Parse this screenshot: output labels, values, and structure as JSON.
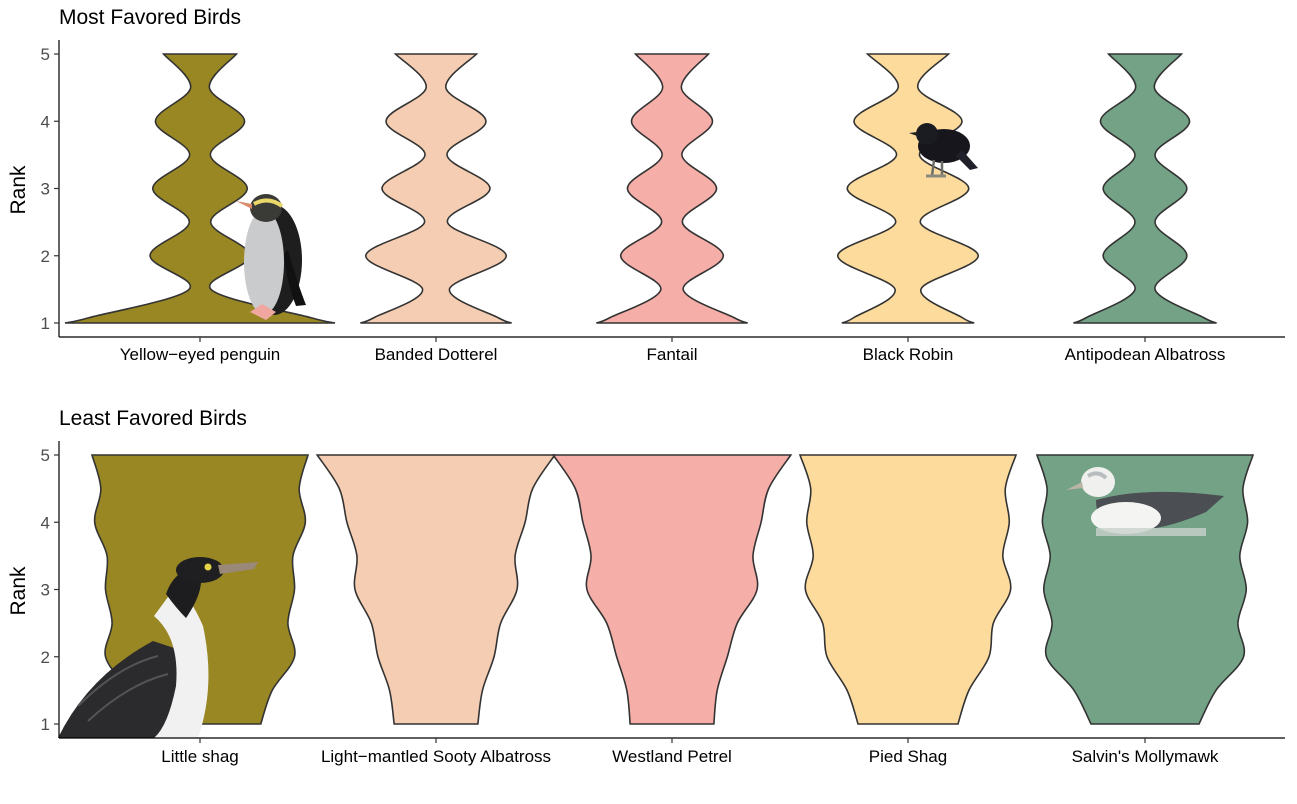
{
  "colors": {
    "olive": "#998723",
    "peach": "#f5cdb2",
    "pink": "#f6aea8",
    "yellow": "#fcdb9c",
    "green": "#73a286",
    "outline": "#333333"
  },
  "chart_data": [
    {
      "type": "violin",
      "title": "Most Favored Birds",
      "ylabel": "Rank",
      "xlabel": "",
      "ylim": [
        1,
        5
      ],
      "yticks": [
        "1",
        "2",
        "3",
        "4",
        "5"
      ],
      "grid": false,
      "legend": "none",
      "categories": [
        "Yellow−eyed penguin",
        "Banded Dotterel",
        "Fantail",
        "Black Robin",
        "Antipodean Albatross"
      ],
      "series": [
        {
          "values": [
            1,
            2,
            3,
            4,
            5
          ],
          "density": [
            1.0,
            0.37,
            0.35,
            0.33,
            0.27
          ],
          "color": "olive",
          "icon": "yellow-eyed-penguin-icon"
        },
        {
          "values": [
            1,
            2,
            3,
            4,
            5
          ],
          "density": [
            0.56,
            0.52,
            0.4,
            0.37,
            0.3
          ],
          "color": "peach",
          "icon": ""
        },
        {
          "values": [
            1,
            2,
            3,
            4,
            5
          ],
          "density": [
            0.56,
            0.38,
            0.33,
            0.3,
            0.27
          ],
          "color": "pink",
          "icon": ""
        },
        {
          "values": [
            1,
            2,
            3,
            4,
            5
          ],
          "density": [
            0.49,
            0.52,
            0.45,
            0.4,
            0.3
          ],
          "color": "yellow",
          "icon": "black-robin-icon"
        },
        {
          "values": [
            1,
            2,
            3,
            4,
            5
          ],
          "density": [
            0.53,
            0.31,
            0.31,
            0.33,
            0.27
          ],
          "color": "green",
          "icon": ""
        }
      ]
    },
    {
      "type": "violin",
      "title": "Least Favored Birds",
      "ylabel": "Rank",
      "xlabel": "",
      "ylim": [
        1,
        5
      ],
      "yticks": [
        "1",
        "2",
        "3",
        "4",
        "5"
      ],
      "grid": false,
      "legend": "none",
      "categories": [
        "Little shag",
        "Light−mantled Sooty Albatross",
        "Westland Petrel",
        "Pied Shag",
        "Salvin's Mollymawk"
      ],
      "series": [
        {
          "values": [
            1,
            2,
            3,
            4,
            5
          ],
          "density": [
            0.45,
            0.7,
            0.7,
            0.78,
            0.8
          ],
          "color": "olive",
          "icon": "little-shag-icon"
        },
        {
          "values": [
            1,
            2,
            3,
            4,
            5
          ],
          "density": [
            0.31,
            0.43,
            0.6,
            0.66,
            0.88
          ],
          "color": "peach",
          "icon": ""
        },
        {
          "values": [
            1,
            2,
            3,
            4,
            5
          ],
          "density": [
            0.31,
            0.41,
            0.63,
            0.66,
            0.88
          ],
          "color": "pink",
          "icon": ""
        },
        {
          "values": [
            1,
            2,
            3,
            4,
            5
          ],
          "density": [
            0.37,
            0.6,
            0.76,
            0.75,
            0.8
          ],
          "color": "yellow",
          "icon": ""
        },
        {
          "values": [
            1,
            2,
            3,
            4,
            5
          ],
          "density": [
            0.4,
            0.73,
            0.75,
            0.76,
            0.8
          ],
          "color": "green",
          "icon": "salvins-mollymawk-icon"
        }
      ]
    }
  ]
}
